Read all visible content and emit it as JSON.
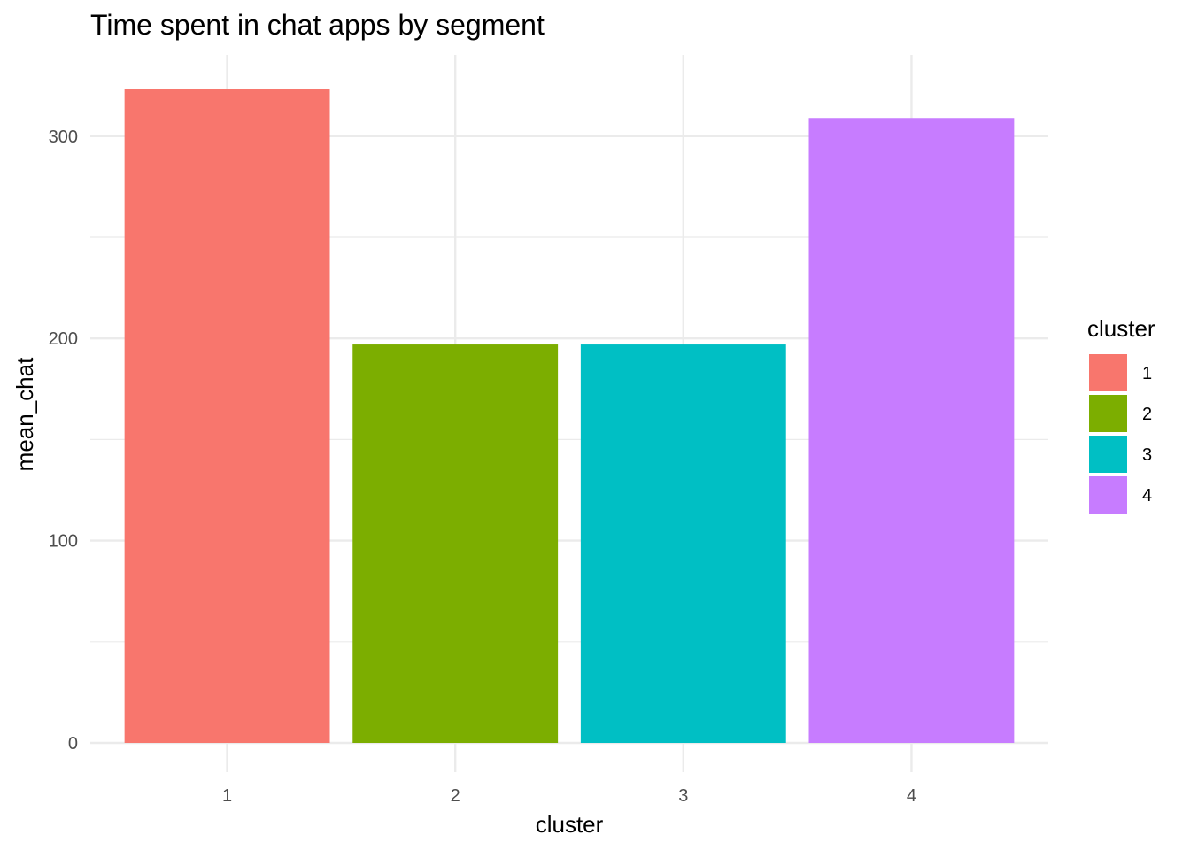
{
  "chart_data": {
    "type": "bar",
    "title": "Time spent in chat apps by segment",
    "xlabel": "cluster",
    "ylabel": "mean_chat",
    "categories": [
      "1",
      "2",
      "3",
      "4"
    ],
    "values": [
      323.5,
      197,
      197,
      309
    ],
    "ylim": [
      0,
      335
    ],
    "yticks": [
      0,
      100,
      200,
      300
    ],
    "grid": true,
    "legend": {
      "title": "cluster",
      "position": "right",
      "entries": [
        "1",
        "2",
        "3",
        "4"
      ]
    },
    "colors": [
      "#F8766D",
      "#7CAE00",
      "#00BFC4",
      "#C77CFF"
    ]
  }
}
